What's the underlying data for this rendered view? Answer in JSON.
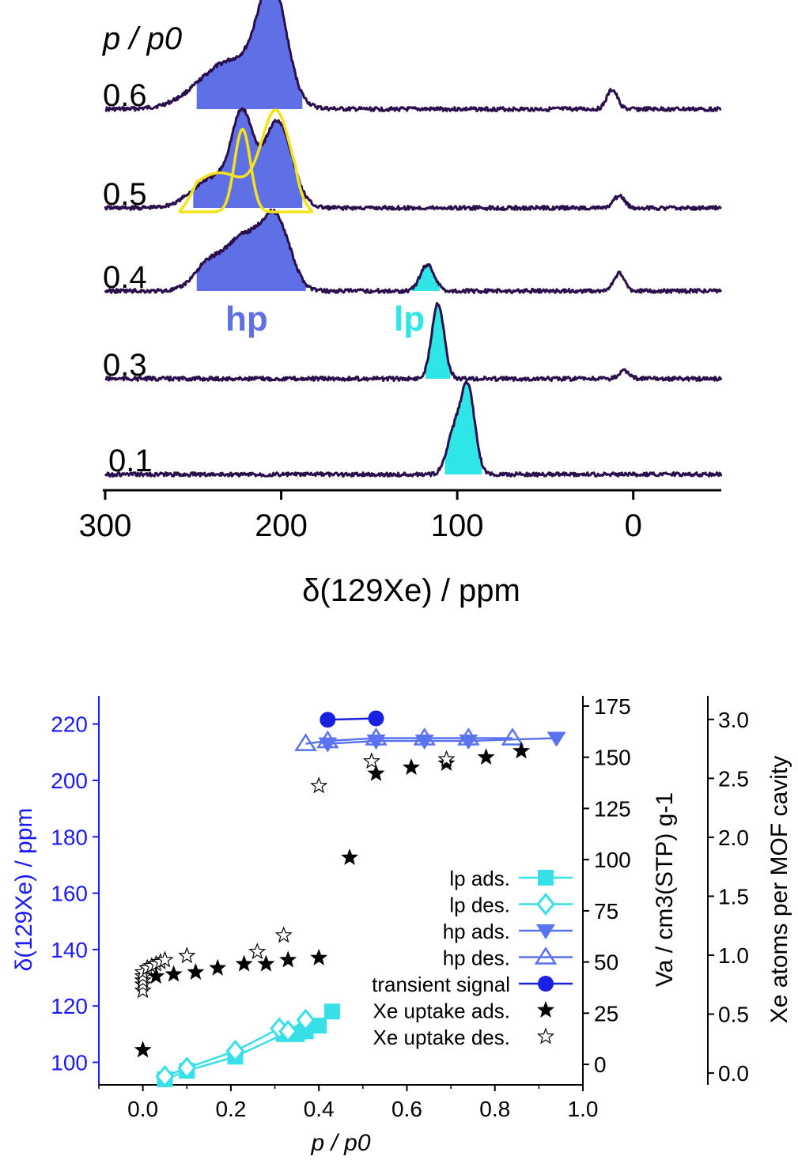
{
  "colors": {
    "trace": "#2a0f4d",
    "hp_fill": "#5f6fe6",
    "lp_fill": "#2ee6e6",
    "fit": "#f4e21a",
    "blue_axis": "#1a1aff",
    "lp_marker": "#36e0e6",
    "hp_marker": "#5b73f0",
    "transient": "#1a20e0",
    "black": "#000000"
  },
  "chart_data": [
    {
      "type": "line",
      "title": "",
      "stack_title": "p / p0",
      "xlabel": "δ(129Xe) / ppm",
      "xlim": [
        300,
        -50
      ],
      "xticks": [
        "300",
        "200",
        "100",
        "0"
      ],
      "xtick_values": [
        300,
        200,
        100,
        0
      ],
      "region_labels": {
        "hp": "hp",
        "lp": "lp"
      },
      "spectra": [
        {
          "label": "0.6",
          "peaks": [
            {
              "center": 205,
              "height": 1.0,
              "width": 8
            },
            {
              "center": 228,
              "height": 0.45,
              "width": 18
            },
            {
              "center": 12,
              "height": 0.18,
              "width": 3
            }
          ],
          "shaded": [
            {
              "region": "hp",
              "from": 248,
              "to": 188
            }
          ]
        },
        {
          "label": "0.5",
          "peaks": [
            {
              "center": 222,
              "height": 0.95,
              "width": 6
            },
            {
              "center": 202,
              "height": 1.0,
              "width": 8
            },
            {
              "center": 238,
              "height": 0.35,
              "width": 12
            },
            {
              "center": 8,
              "height": 0.14,
              "width": 3
            }
          ],
          "shaded": [
            {
              "region": "hp",
              "from": 250,
              "to": 188
            }
          ],
          "fit": true
        },
        {
          "label": "0.4",
          "peaks": [
            {
              "center": 203,
              "height": 1.0,
              "width": 8
            },
            {
              "center": 222,
              "height": 0.75,
              "width": 10
            },
            {
              "center": 242,
              "height": 0.35,
              "width": 8
            },
            {
              "center": 117,
              "height": 0.38,
              "width": 4
            },
            {
              "center": 8,
              "height": 0.25,
              "width": 3
            }
          ],
          "shaded": [
            {
              "region": "hp",
              "from": 248,
              "to": 186
            },
            {
              "region": "lp",
              "from": 126,
              "to": 110
            }
          ]
        },
        {
          "label": "0.3",
          "peaks": [
            {
              "center": 111,
              "height": 1.0,
              "width": 3.5
            },
            {
              "center": 5,
              "height": 0.1,
              "width": 3
            }
          ],
          "shaded": [
            {
              "region": "lp",
              "from": 118,
              "to": 104
            }
          ]
        },
        {
          "label": "0.1",
          "peaks": [
            {
              "center": 94,
              "height": 1.0,
              "width": 4
            },
            {
              "center": 102,
              "height": 0.45,
              "width": 4
            }
          ],
          "shaded": [
            {
              "region": "lp",
              "from": 107,
              "to": 86
            }
          ]
        }
      ]
    },
    {
      "type": "scatter",
      "title": "",
      "xlabel": "p / p0",
      "ylabel_left": "δ(129Xe) / ppm",
      "ylabel_right1": "Va / cm3(STP) g-1",
      "ylabel_right2": "Xe atoms per MOF cavity",
      "xlim": [
        -0.1,
        1.0
      ],
      "ylim_left": [
        92,
        230
      ],
      "ylim_right1": [
        -10,
        180
      ],
      "ylim_right2": [
        -0.1,
        3.2
      ],
      "xticks": [
        "0.0",
        "0.2",
        "0.4",
        "0.6",
        "0.8",
        "1.0"
      ],
      "xtick_values": [
        0.0,
        0.2,
        0.4,
        0.6,
        0.8,
        1.0
      ],
      "yticks_left": [
        "100",
        "120",
        "140",
        "160",
        "180",
        "200",
        "220"
      ],
      "ytick_values_left": [
        100,
        120,
        140,
        160,
        180,
        200,
        220
      ],
      "yticks_right1": [
        "0",
        "25",
        "50",
        "75",
        "100",
        "125",
        "150",
        "175"
      ],
      "ytick_values_right1": [
        0,
        25,
        50,
        75,
        100,
        125,
        150,
        175
      ],
      "yticks_right2": [
        "0.0",
        "0.5",
        "1.0",
        "1.5",
        "2.0",
        "2.5",
        "3.0"
      ],
      "ytick_values_right2": [
        0.0,
        0.5,
        1.0,
        1.5,
        2.0,
        2.5,
        3.0
      ],
      "series": [
        {
          "name": "lp ads.",
          "axis": "left",
          "marker": "square-filled",
          "x": [
            0.05,
            0.1,
            0.21,
            0.32,
            0.35,
            0.37,
            0.4,
            0.43
          ],
          "y": [
            94,
            97,
            102,
            110,
            110,
            111,
            113,
            118
          ]
        },
        {
          "name": "lp des.",
          "axis": "left",
          "marker": "diamond-open",
          "x": [
            0.05,
            0.1,
            0.21,
            0.31,
            0.33,
            0.37
          ],
          "y": [
            95,
            98,
            104,
            112,
            111,
            115
          ]
        },
        {
          "name": "hp ads.",
          "axis": "left",
          "marker": "triangle-down-filled",
          "x": [
            0.42,
            0.53,
            0.64,
            0.74,
            0.94
          ],
          "y": [
            213,
            214,
            214,
            214,
            215
          ]
        },
        {
          "name": "hp des.",
          "axis": "left",
          "marker": "triangle-up-open",
          "x": [
            0.37,
            0.42,
            0.53,
            0.64,
            0.74,
            0.84
          ],
          "y": [
            213,
            214,
            215,
            215,
            215,
            215
          ]
        },
        {
          "name": "transient signal",
          "axis": "left",
          "marker": "circle-filled",
          "x": [
            0.42,
            0.53
          ],
          "y": [
            221.5,
            222
          ]
        },
        {
          "name": "Xe uptake ads.",
          "axis": "right1",
          "marker": "star-filled",
          "x": [
            0.0,
            0.03,
            0.07,
            0.12,
            0.17,
            0.23,
            0.28,
            0.33,
            0.4,
            0.47,
            0.53,
            0.61,
            0.69,
            0.78,
            0.86
          ],
          "y": [
            7,
            43,
            44,
            45,
            47,
            49,
            49,
            51,
            52,
            101,
            142,
            145,
            147,
            150,
            153
          ]
        },
        {
          "name": "Xe uptake des.",
          "axis": "right1",
          "marker": "star-open",
          "x": [
            0.0,
            0.0,
            0.0,
            0.0,
            0.0,
            0.01,
            0.02,
            0.03,
            0.04,
            0.05,
            0.1,
            0.26,
            0.32,
            0.4,
            0.52,
            0.69
          ],
          "y": [
            36,
            39,
            41,
            43,
            45,
            47,
            48,
            49,
            50,
            51,
            53,
            55,
            63,
            136,
            148,
            149
          ]
        }
      ]
    }
  ]
}
